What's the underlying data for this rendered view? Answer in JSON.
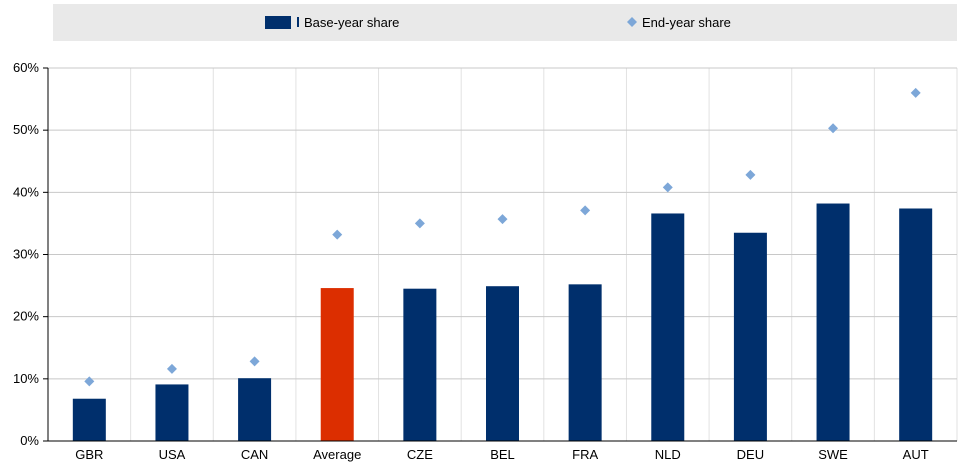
{
  "chart_data": {
    "type": "bar",
    "categories": [
      "GBR",
      "USA",
      "CAN",
      "Average",
      "CZE",
      "BEL",
      "FRA",
      "NLD",
      "DEU",
      "SWE",
      "AUT"
    ],
    "series": [
      {
        "name": "Base-year share",
        "kind": "bar",
        "color": "#002f6c",
        "highlight": {
          "category": "Average",
          "color": "#dc2e00"
        },
        "values": [
          6.8,
          9.1,
          10.1,
          24.6,
          24.5,
          24.9,
          25.2,
          36.6,
          33.5,
          38.2,
          37.4
        ]
      },
      {
        "name": "End-year share",
        "kind": "marker",
        "marker": "diamond",
        "color": "#7da7d8",
        "values": [
          9.6,
          11.6,
          12.8,
          33.2,
          35.0,
          35.7,
          37.1,
          40.8,
          42.8,
          50.3,
          56.0
        ]
      }
    ],
    "yticks": [
      "0%",
      "10%",
      "20%",
      "30%",
      "40%",
      "50%",
      "60%"
    ],
    "ylim": [
      0,
      60
    ],
    "legend_position": "top",
    "grid": true
  }
}
